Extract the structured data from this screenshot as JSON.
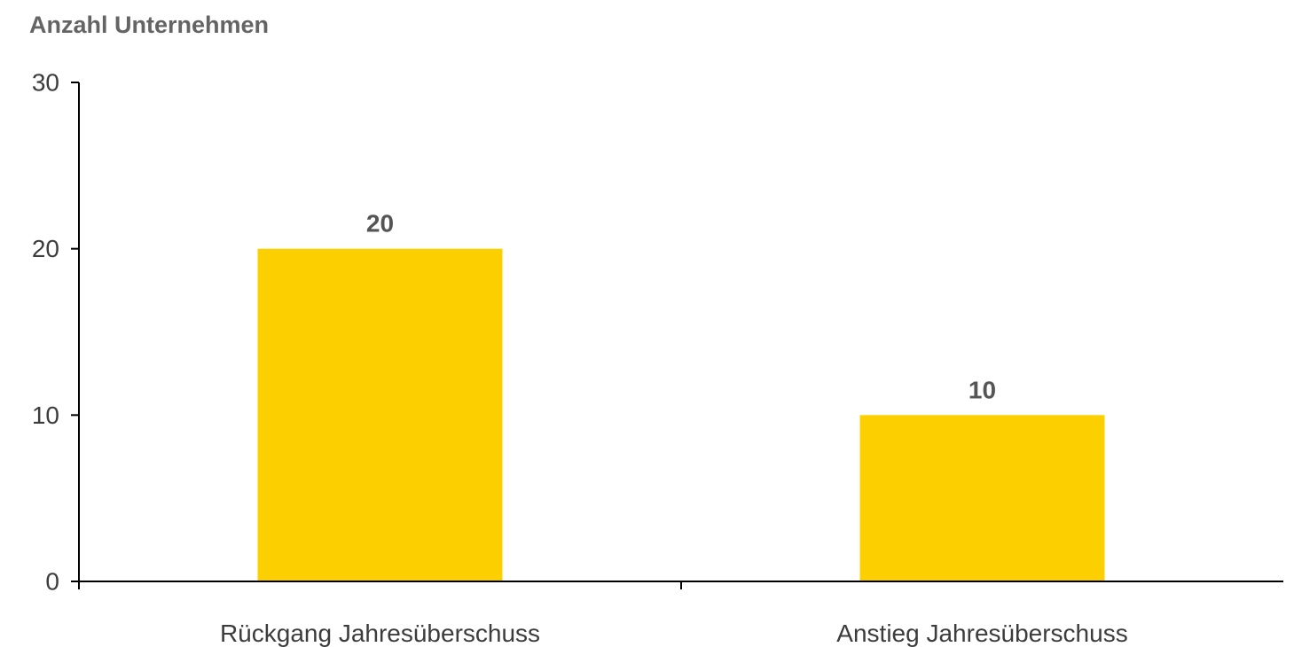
{
  "chart_data": {
    "type": "bar",
    "ylabel": "Anzahl Unternehmen",
    "xlabel": "",
    "categories": [
      "Rückgang Jahresüberschuss",
      "Anstieg Jahresüberschuss"
    ],
    "values": [
      20,
      10
    ],
    "data_labels": [
      "20",
      "10"
    ],
    "ylim": [
      0,
      30
    ],
    "yticks": [
      0,
      10,
      20,
      30
    ],
    "ytick_labels": [
      "0",
      "10",
      "20",
      "30"
    ],
    "bar_color": "#FCD000",
    "grid": false,
    "legend": "none"
  }
}
